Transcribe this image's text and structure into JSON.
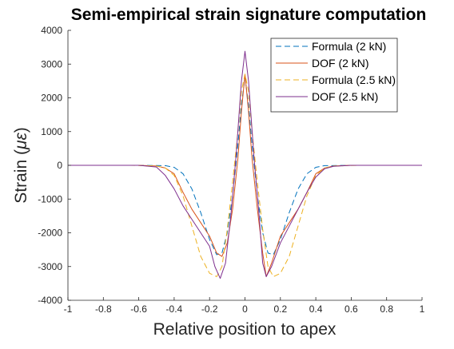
{
  "chart_data": {
    "type": "line",
    "title": "Semi-empirical strain signature computation",
    "xlabel": "Relative position to apex",
    "ylabel_prefix": "Strain (",
    "ylabel_symbol": "με",
    "ylabel_suffix": ")",
    "xlim": [
      -1,
      1
    ],
    "ylim": [
      -4000,
      4000
    ],
    "x_ticks": [
      "-1",
      "-0.8",
      "-0.6",
      "-0.4",
      "-0.2",
      "0",
      "0.2",
      "0.4",
      "0.6",
      "0.8",
      "1"
    ],
    "y_ticks": [
      "-4000",
      "-3000",
      "-2000",
      "-1000",
      "0",
      "1000",
      "2000",
      "3000",
      "4000"
    ],
    "grid": false,
    "legend_position": "top-right",
    "series": [
      {
        "name": "Formula (2 kN)",
        "color": "#0072BD",
        "dash": true,
        "x": [
          -1,
          -0.6,
          -0.45,
          -0.4,
          -0.35,
          -0.3,
          -0.25,
          -0.2,
          -0.16,
          -0.13,
          -0.1,
          -0.07,
          -0.04,
          -0.02,
          0,
          0.02,
          0.04,
          0.07,
          0.1,
          0.13,
          0.16,
          0.2,
          0.25,
          0.3,
          0.35,
          0.4,
          0.45,
          0.6,
          1
        ],
        "y": [
          0,
          0,
          -10,
          -60,
          -250,
          -700,
          -1400,
          -2200,
          -2650,
          -2600,
          -2000,
          -900,
          600,
          1800,
          2600,
          1800,
          600,
          -900,
          -2000,
          -2600,
          -2650,
          -2200,
          -1400,
          -700,
          -250,
          -60,
          -10,
          0,
          0
        ]
      },
      {
        "name": "DOF (2 kN)",
        "color": "#D95319",
        "dash": false,
        "x": [
          -1,
          -0.6,
          -0.5,
          -0.45,
          -0.4,
          -0.35,
          -0.3,
          -0.25,
          -0.2,
          -0.16,
          -0.13,
          -0.1,
          -0.07,
          -0.04,
          -0.02,
          0,
          0.02,
          0.04,
          0.07,
          0.1,
          0.12,
          0.15,
          0.2,
          0.25,
          0.3,
          0.35,
          0.4,
          0.45,
          0.5,
          0.6,
          1
        ],
        "y": [
          0,
          0,
          -20,
          -80,
          -250,
          -800,
          -1300,
          -1700,
          -2100,
          -2600,
          -2700,
          -2300,
          -1300,
          200,
          1600,
          2700,
          1600,
          200,
          -1300,
          -2600,
          -3300,
          -2900,
          -2100,
          -1700,
          -1300,
          -800,
          -250,
          -80,
          -20,
          0,
          0
        ]
      },
      {
        "name": "Formula (2.5 kN)",
        "color": "#EDB120",
        "dash": true,
        "x": [
          -1,
          -0.65,
          -0.5,
          -0.45,
          -0.4,
          -0.35,
          -0.3,
          -0.25,
          -0.2,
          -0.16,
          -0.13,
          -0.1,
          -0.07,
          -0.04,
          -0.02,
          0,
          0.02,
          0.04,
          0.07,
          0.1,
          0.13,
          0.16,
          0.2,
          0.25,
          0.3,
          0.35,
          0.4,
          0.45,
          0.5,
          0.65,
          1
        ],
        "y": [
          0,
          0,
          -20,
          -80,
          -300,
          -900,
          -1800,
          -2700,
          -3200,
          -3300,
          -3000,
          -1900,
          -500,
          1000,
          2200,
          2700,
          2200,
          1000,
          -500,
          -1900,
          -3000,
          -3300,
          -3200,
          -2700,
          -1800,
          -900,
          -300,
          -80,
          -20,
          0,
          0
        ]
      },
      {
        "name": "DOF (2.5 kN)",
        "color": "#7E2F8E",
        "dash": false,
        "x": [
          -1,
          -0.6,
          -0.5,
          -0.45,
          -0.4,
          -0.35,
          -0.3,
          -0.25,
          -0.2,
          -0.17,
          -0.14,
          -0.11,
          -0.08,
          -0.05,
          -0.02,
          0,
          0.02,
          0.05,
          0.08,
          0.1,
          0.12,
          0.15,
          0.2,
          0.25,
          0.3,
          0.35,
          0.4,
          0.45,
          0.5,
          0.6,
          1
        ],
        "y": [
          0,
          0,
          -50,
          -300,
          -700,
          -1200,
          -1600,
          -2000,
          -2400,
          -3000,
          -3350,
          -2900,
          -1500,
          300,
          2500,
          3380,
          2500,
          300,
          -1500,
          -2900,
          -3300,
          -3000,
          -2300,
          -1800,
          -1300,
          -800,
          -350,
          -100,
          -30,
          0,
          0
        ]
      }
    ]
  }
}
